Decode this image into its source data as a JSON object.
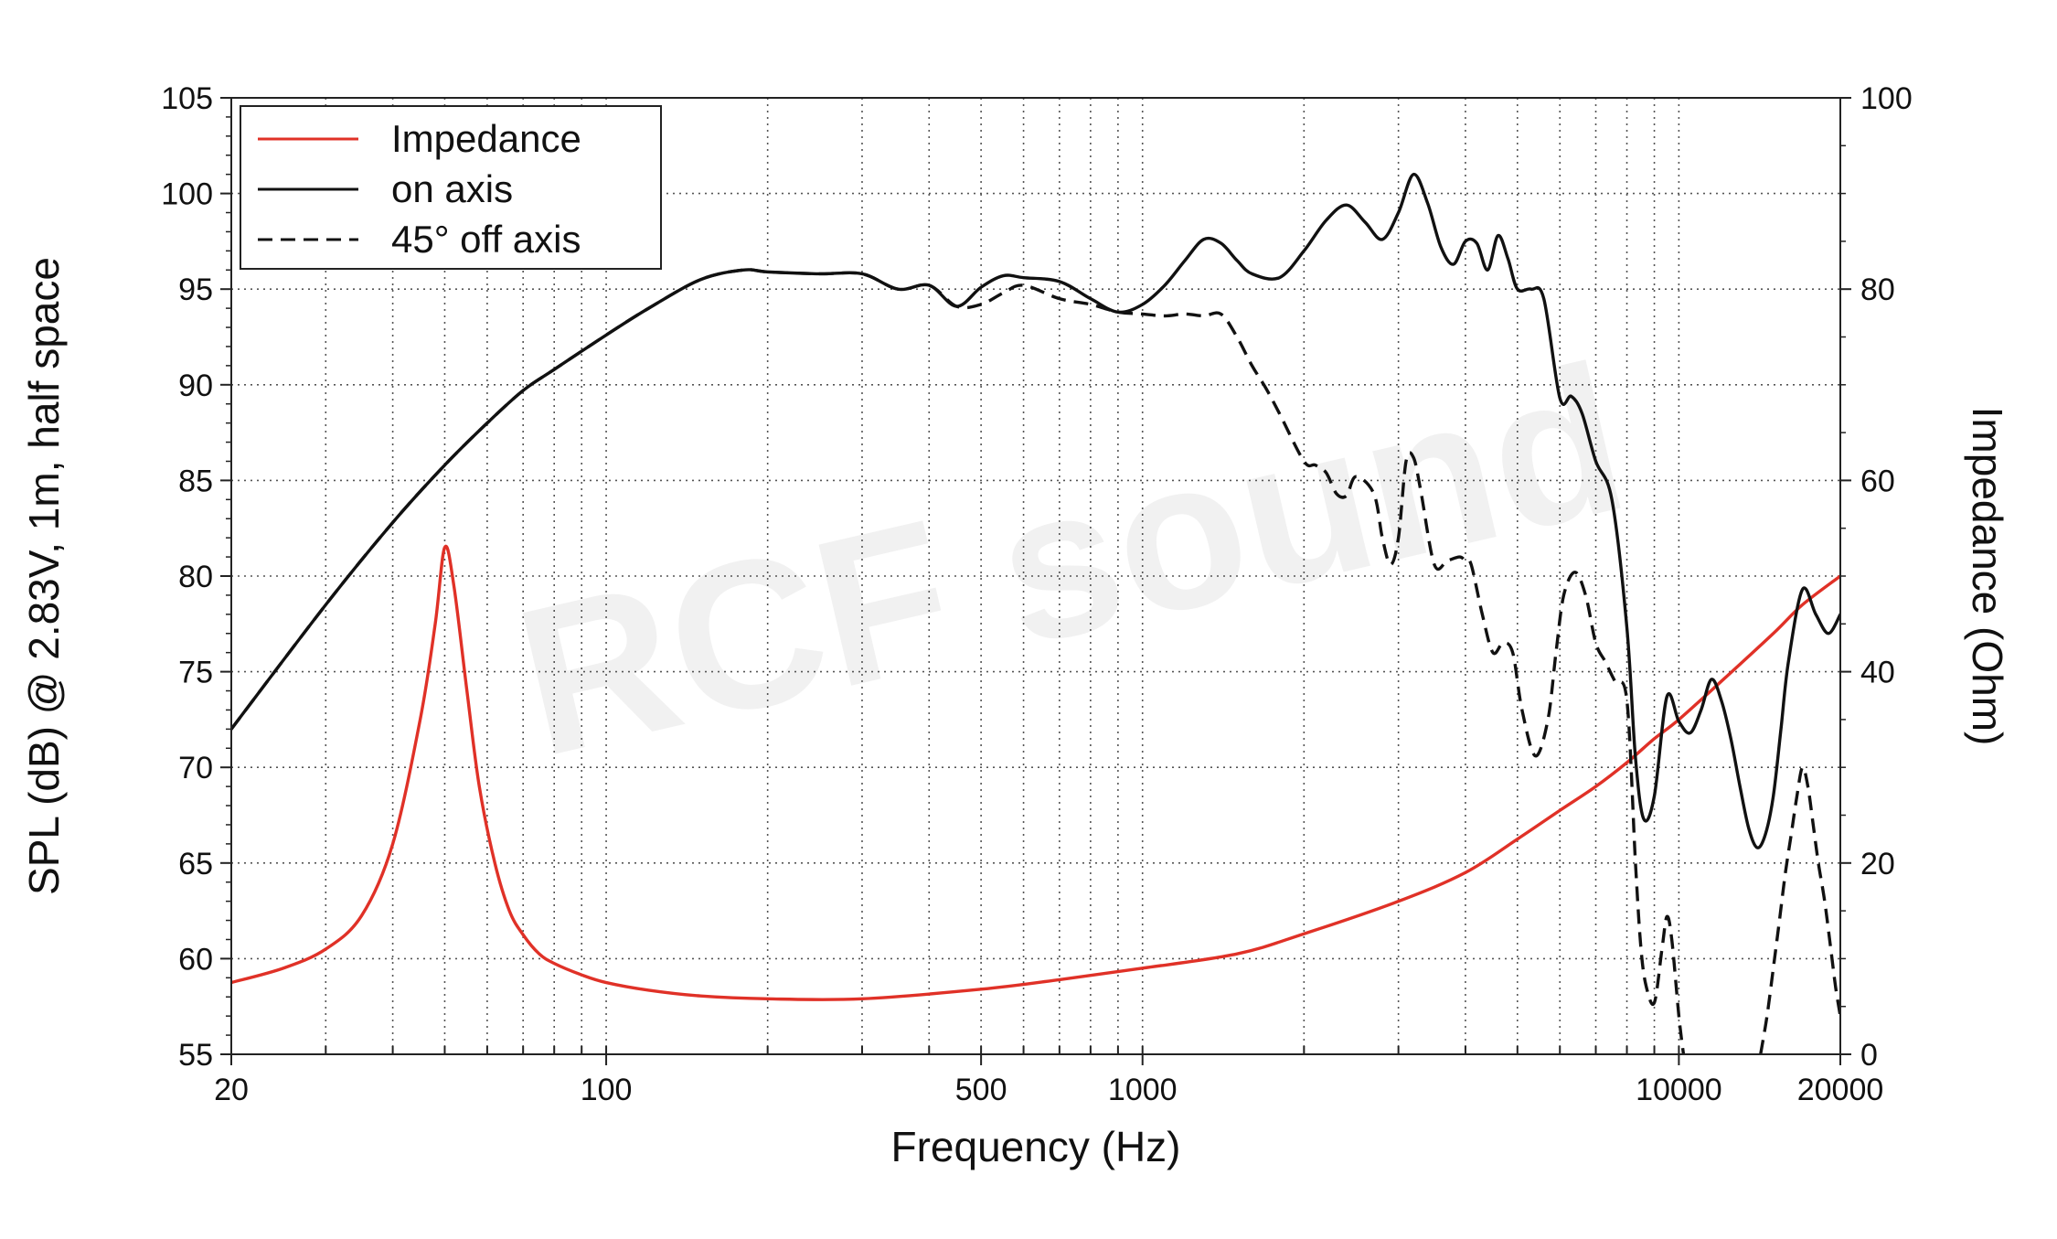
{
  "chart_data": {
    "type": "line",
    "x_scale": "log",
    "xlim": [
      20,
      20000
    ],
    "ylim": [
      55,
      105
    ],
    "y2lim": [
      0,
      100
    ],
    "xlabel": "Frequency (Hz)",
    "ylabel": "SPL (dB) @ 2.83V, 1m, half space",
    "y2label": "Impedance (Ohm)",
    "x_ticks": [
      20,
      100,
      500,
      1000,
      10000,
      20000
    ],
    "y_ticks": [
      55,
      60,
      65,
      70,
      75,
      80,
      85,
      90,
      95,
      100,
      105
    ],
    "y2_ticks": [
      0,
      20,
      40,
      60,
      80,
      100
    ],
    "grid": true,
    "legend_position": "top-left",
    "watermark": "RCF sound",
    "series": [
      {
        "name": "Impedance",
        "axis": "right",
        "style": "solid",
        "color": "#e03127",
        "x": [
          20,
          25,
          30,
          35,
          40,
          45,
          48,
          50,
          52,
          55,
          58,
          62,
          66,
          70,
          75,
          80,
          90,
          100,
          120,
          150,
          200,
          300,
          500,
          700,
          1000,
          1500,
          2000,
          3000,
          4000,
          5000,
          6000,
          7000,
          8000,
          9000,
          10000,
          12000,
          15000,
          17000,
          20000
        ],
        "y": [
          7.5,
          9.0,
          11.0,
          14.5,
          22.0,
          35.0,
          45.0,
          53.0,
          49.0,
          38.0,
          28.0,
          20.0,
          15.0,
          12.5,
          10.5,
          9.5,
          8.3,
          7.5,
          6.7,
          6.1,
          5.8,
          5.8,
          6.8,
          7.8,
          9.0,
          10.5,
          12.6,
          16.0,
          19.0,
          22.5,
          25.5,
          28.0,
          30.5,
          33.0,
          35.0,
          39.0,
          44.0,
          47.0,
          50.0
        ]
      },
      {
        "name": "on axis",
        "axis": "left",
        "style": "solid",
        "color": "#111111",
        "x": [
          20,
          30,
          40,
          50,
          60,
          70,
          80,
          100,
          120,
          150,
          180,
          200,
          250,
          300,
          350,
          400,
          450,
          500,
          550,
          600,
          700,
          800,
          900,
          1000,
          1100,
          1200,
          1300,
          1400,
          1500,
          1600,
          1800,
          2000,
          2200,
          2400,
          2600,
          2800,
          3000,
          3200,
          3400,
          3600,
          3800,
          4000,
          4200,
          4400,
          4600,
          4800,
          5000,
          5300,
          5600,
          6000,
          6300,
          6600,
          7000,
          7500,
          8000,
          8300,
          8600,
          9000,
          9500,
          10000,
          10500,
          11000,
          11500,
          12000,
          12500,
          13000,
          13500,
          14000,
          14500,
          15000,
          15500,
          16000,
          17000,
          18000,
          19000,
          20000
        ],
        "y": [
          72.0,
          78.5,
          82.8,
          85.8,
          88.0,
          89.7,
          90.8,
          92.6,
          94.0,
          95.5,
          96.0,
          95.9,
          95.8,
          95.8,
          95.0,
          95.2,
          94.1,
          95.1,
          95.7,
          95.6,
          95.4,
          94.5,
          93.8,
          94.2,
          95.2,
          96.5,
          97.6,
          97.4,
          96.5,
          95.8,
          95.6,
          97.0,
          98.6,
          99.4,
          98.5,
          97.6,
          99.0,
          101.0,
          99.5,
          97.2,
          96.3,
          97.5,
          97.4,
          96.0,
          97.8,
          96.6,
          95.0,
          95.0,
          94.5,
          89.3,
          89.4,
          88.5,
          86.0,
          84.0,
          77.3,
          70.5,
          67.3,
          68.5,
          73.7,
          72.4,
          71.8,
          73.0,
          74.6,
          73.5,
          71.5,
          69.0,
          66.8,
          65.8,
          66.5,
          68.5,
          72.0,
          75.5,
          79.3,
          78.0,
          77.0,
          78.0
        ]
      },
      {
        "name": "45° off axis",
        "axis": "left",
        "style": "dashed",
        "color": "#111111",
        "x": [
          20,
          30,
          40,
          50,
          60,
          70,
          80,
          100,
          120,
          150,
          180,
          200,
          250,
          300,
          350,
          400,
          450,
          500,
          550,
          600,
          700,
          800,
          900,
          1000,
          1100,
          1200,
          1300,
          1400,
          1500,
          1600,
          1700,
          1800,
          2000,
          2100,
          2200,
          2300,
          2400,
          2500,
          2700,
          2800,
          2900,
          3000,
          3100,
          3200,
          3300,
          3500,
          3700,
          3900,
          4000,
          4100,
          4300,
          4500,
          4700,
          4900,
          5100,
          5400,
          5700,
          5900,
          6100,
          6400,
          6700,
          7000,
          7300,
          7600,
          8000,
          8300,
          8500,
          8700,
          9000,
          9300,
          9500,
          9700,
          10000,
          10200
        ],
        "y": [
          72.0,
          78.5,
          82.8,
          85.8,
          88.0,
          89.7,
          90.8,
          92.6,
          94.0,
          95.5,
          96.0,
          95.9,
          95.8,
          95.8,
          95.0,
          95.2,
          94.1,
          94.2,
          94.8,
          95.2,
          94.5,
          94.2,
          93.8,
          93.7,
          93.6,
          93.7,
          93.6,
          93.7,
          92.5,
          91.0,
          89.8,
          88.5,
          86.0,
          85.8,
          85.4,
          84.3,
          84.2,
          85.2,
          84.3,
          82.0,
          80.6,
          82.0,
          86.0,
          86.2,
          84.5,
          80.6,
          80.8,
          81.0,
          80.8,
          80.6,
          78.0,
          76.0,
          76.5,
          76.0,
          73.0,
          70.6,
          72.5,
          76.0,
          79.0,
          80.2,
          79.0,
          76.5,
          75.5,
          74.5,
          73.5,
          65.0,
          60.5,
          58.5,
          57.7,
          60.5,
          62.2,
          61.0,
          57.0,
          55.0
        ]
      },
      {
        "name": "45° off axis",
        "axis": "left",
        "style": "dashed",
        "color": "#111111",
        "x": [
          14200,
          14600,
          15000,
          15400,
          15800,
          16200,
          16600,
          17000,
          17400,
          17800,
          18200,
          18700,
          19200,
          19600,
          20000
        ],
        "y": [
          55.0,
          57.0,
          59.5,
          62.0,
          64.5,
          66.5,
          68.5,
          70.0,
          69.0,
          67.0,
          65.0,
          63.0,
          60.5,
          58.5,
          57.0
        ]
      }
    ]
  }
}
